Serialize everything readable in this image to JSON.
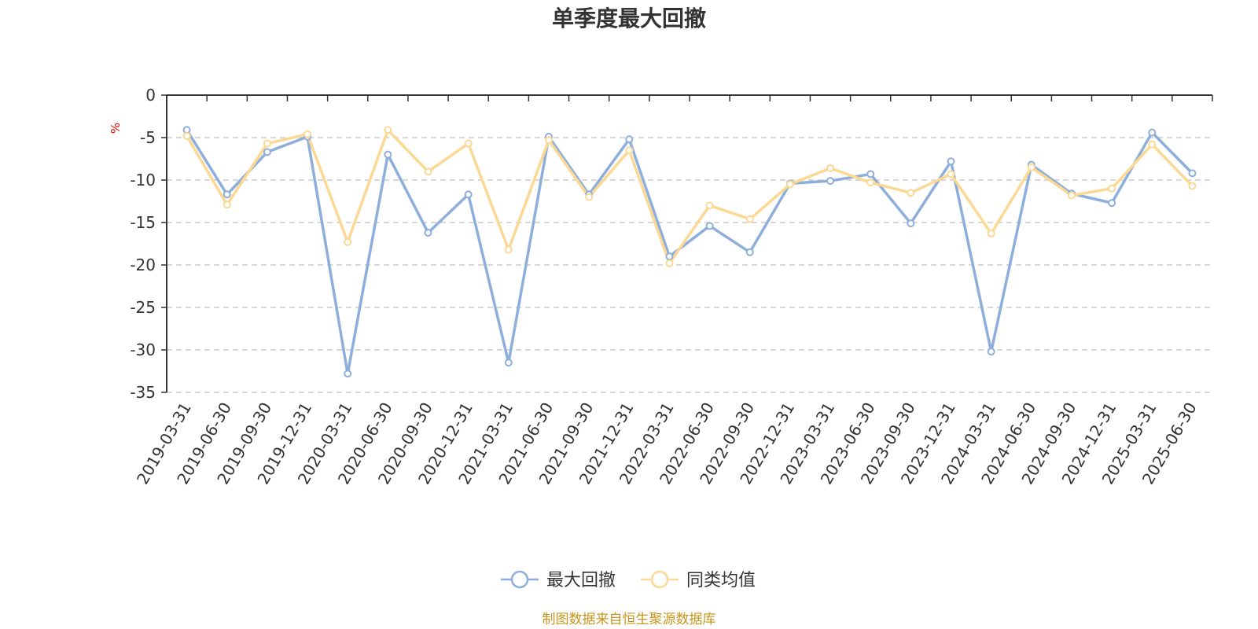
{
  "chart_data": {
    "type": "line",
    "title": "单季度最大回撤",
    "ylabel": "%",
    "ylim": [
      -35,
      0
    ],
    "yticks": [
      0,
      -5,
      -10,
      -15,
      -20,
      -25,
      -30,
      -35
    ],
    "grid": true,
    "legend_position": "bottom",
    "categories": [
      "2019-03-31",
      "2019-06-30",
      "2019-09-30",
      "2019-12-31",
      "2020-03-31",
      "2020-06-30",
      "2020-09-30",
      "2020-12-31",
      "2021-03-31",
      "2021-06-30",
      "2021-09-30",
      "2021-12-31",
      "2022-03-31",
      "2022-06-30",
      "2022-09-30",
      "2022-12-31",
      "2023-03-31",
      "2023-06-30",
      "2023-09-30",
      "2023-12-31",
      "2024-03-31",
      "2024-06-30",
      "2024-09-30",
      "2024-12-31",
      "2025-03-31",
      "2025-06-30"
    ],
    "series": [
      {
        "name": "最大回撤",
        "color": "#8eaedb",
        "values": [
          -4.1,
          -11.7,
          -6.7,
          -4.9,
          -32.8,
          -7.0,
          -16.2,
          -11.7,
          -31.5,
          -4.9,
          -11.7,
          -5.2,
          -19.0,
          -15.4,
          -18.5,
          -10.4,
          -10.1,
          -9.3,
          -15.1,
          -7.8,
          -30.2,
          -8.2,
          -11.6,
          -12.7,
          -4.4,
          -9.2
        ]
      },
      {
        "name": "同类均值",
        "color": "#fbd994",
        "values": [
          -4.8,
          -12.9,
          -5.7,
          -4.6,
          -17.3,
          -4.1,
          -9.0,
          -5.7,
          -18.2,
          -5.3,
          -12.0,
          -6.5,
          -19.8,
          -13.0,
          -14.6,
          -10.5,
          -8.6,
          -10.3,
          -11.5,
          -9.3,
          -16.3,
          -8.5,
          -11.8,
          -11.0,
          -5.8,
          -10.7
        ]
      }
    ]
  },
  "source_note": "制图数据来自恒生聚源数据库"
}
